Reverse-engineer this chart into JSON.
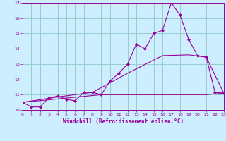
{
  "title": "",
  "xlabel": "Windchill (Refroidissement éolien,°C)",
  "xlim": [
    0,
    23
  ],
  "ylim": [
    10,
    17
  ],
  "yticks": [
    10,
    11,
    12,
    13,
    14,
    15,
    16,
    17
  ],
  "xticks": [
    0,
    1,
    2,
    3,
    4,
    5,
    6,
    7,
    8,
    9,
    10,
    11,
    12,
    13,
    14,
    15,
    16,
    17,
    18,
    19,
    20,
    21,
    22,
    23
  ],
  "bg_color": "#cceeff",
  "grid_color": "#99cccc",
  "line_color": "#990099",
  "line1_x": [
    0,
    1,
    2,
    3,
    4,
    5,
    6,
    7,
    8,
    9,
    10,
    11,
    12,
    13,
    14,
    15,
    16,
    17,
    18,
    19,
    20,
    21,
    22,
    23
  ],
  "line1_y": [
    10.5,
    10.2,
    10.2,
    10.8,
    10.9,
    10.7,
    10.6,
    11.15,
    11.15,
    11.0,
    11.9,
    12.4,
    13.0,
    14.3,
    14.0,
    15.0,
    15.2,
    17.0,
    16.2,
    14.6,
    13.55,
    13.45,
    11.15,
    11.1
  ],
  "line2_x": [
    0,
    4,
    8,
    12,
    16,
    19,
    21,
    23
  ],
  "line2_y": [
    10.5,
    10.85,
    11.15,
    12.4,
    13.55,
    13.6,
    13.45,
    11.1
  ],
  "line3_x": [
    0,
    9,
    15,
    21,
    23
  ],
  "line3_y": [
    10.5,
    11.0,
    11.0,
    11.0,
    11.1
  ]
}
